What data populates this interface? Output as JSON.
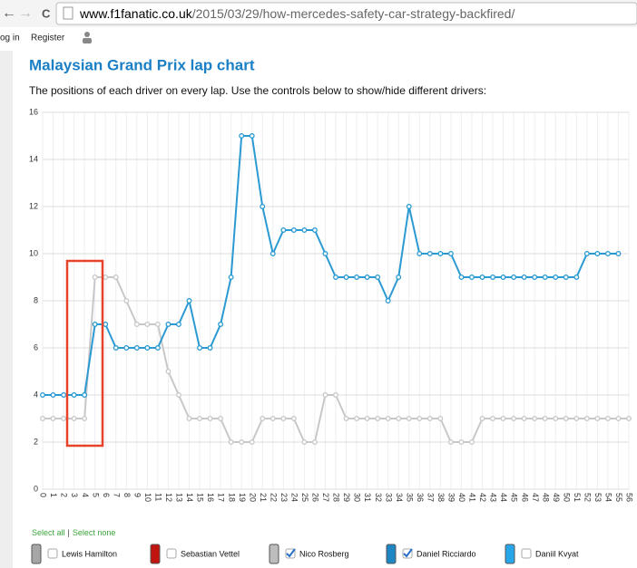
{
  "browser": {
    "url_host": "www.f1fanatic.co.uk",
    "url_path": "/2015/03/29/how-mercedes-safety-car-strategy-backfired/",
    "reload": "C"
  },
  "nav": {
    "login": "og in",
    "register": "Register"
  },
  "heading": "Malaysian Grand Prix lap chart",
  "description": "The positions of each driver on every lap. Use the controls below to show/hide different drivers:",
  "chart_data": {
    "type": "line",
    "x": [
      0,
      1,
      2,
      3,
      4,
      5,
      6,
      7,
      8,
      9,
      10,
      11,
      12,
      13,
      14,
      15,
      16,
      17,
      18,
      19,
      20,
      21,
      22,
      23,
      24,
      25,
      26,
      27,
      28,
      29,
      30,
      31,
      32,
      33,
      34,
      35,
      36,
      37,
      38,
      39,
      40,
      41,
      42,
      43,
      44,
      45,
      46,
      47,
      48,
      49,
      50,
      51,
      52,
      53,
      54,
      55,
      56
    ],
    "xlim": [
      0,
      56
    ],
    "xticks": [
      0,
      1,
      2,
      3,
      4,
      5,
      6,
      7,
      8,
      9,
      10,
      11,
      12,
      13,
      14,
      15,
      16,
      17,
      18,
      19,
      20,
      21,
      22,
      23,
      24,
      25,
      26,
      27,
      28,
      29,
      30,
      31,
      32,
      33,
      34,
      35,
      36,
      37,
      38,
      39,
      40,
      41,
      42,
      43,
      44,
      45,
      46,
      47,
      48,
      49,
      50,
      51,
      52,
      53,
      54,
      55,
      56
    ],
    "ylim": [
      0,
      16
    ],
    "yticks": [
      0,
      2,
      4,
      6,
      8,
      10,
      12,
      14,
      16
    ],
    "grid": true,
    "series": [
      {
        "name": "Nico Rosberg",
        "color": "#c8c8c8",
        "values": [
          3,
          3,
          3,
          3,
          3,
          9,
          9,
          9,
          8,
          7,
          7,
          7,
          5,
          4,
          3,
          3,
          3,
          3,
          2,
          2,
          2,
          3,
          3,
          3,
          3,
          2,
          2,
          4,
          4,
          3,
          3,
          3,
          3,
          3,
          3,
          3,
          3,
          3,
          3,
          2,
          2,
          2,
          3,
          3,
          3,
          3,
          3,
          3,
          3,
          3,
          3,
          3,
          3,
          3,
          3,
          3,
          3
        ]
      },
      {
        "name": "Daniel Ricciardo",
        "color": "#2b9ad2",
        "values": [
          4,
          4,
          4,
          4,
          4,
          7,
          7,
          6,
          6,
          6,
          6,
          6,
          7,
          7,
          8,
          6,
          6,
          7,
          9,
          15,
          15,
          12,
          10,
          11,
          11,
          11,
          11,
          10,
          9,
          9,
          9,
          9,
          9,
          8,
          9,
          12,
          10,
          10,
          10,
          10,
          9,
          9,
          9,
          9,
          9,
          9,
          9,
          9,
          9,
          9,
          9,
          9,
          10,
          10,
          10,
          10,
          null
        ]
      }
    ]
  },
  "controls": {
    "select_all": "Select all",
    "separator": "|",
    "select_none": "Select none",
    "drivers": [
      {
        "name": "Lewis Hamilton",
        "color": "#a6a6a6",
        "checked": false
      },
      {
        "name": "Sebastian Vettel",
        "color": "#c0140f",
        "checked": false
      },
      {
        "name": "Nico Rosberg",
        "color": "#bdbdbd",
        "checked": true
      },
      {
        "name": "Daniel Ricciardo",
        "color": "#1f86c4",
        "checked": true
      },
      {
        "name": "Daniil Kvyat",
        "color": "#27a7ea",
        "checked": false
      }
    ]
  }
}
